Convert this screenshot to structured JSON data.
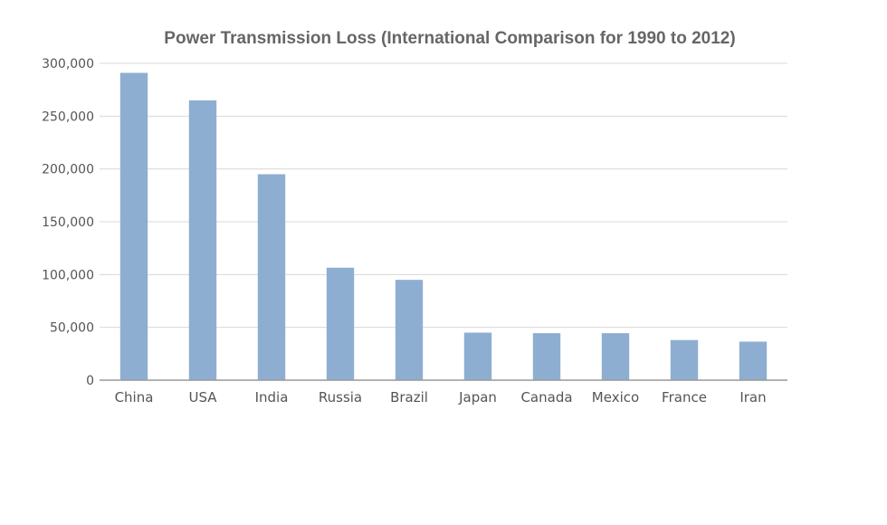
{
  "chart_data": {
    "type": "bar",
    "title": "Power Transmission Loss (International Comparison for 1990 to 2012)",
    "xlabel": "",
    "ylabel": "",
    "categories": [
      "China",
      "USA",
      "India",
      "Russia",
      "Brazil",
      "Japan",
      "Canada",
      "Mexico",
      "France",
      "Iran"
    ],
    "values": [
      291000,
      265000,
      195000,
      106500,
      95000,
      45000,
      44500,
      44500,
      38000,
      36500
    ],
    "ylim": [
      0,
      300000
    ],
    "yticks": [
      0,
      50000,
      100000,
      150000,
      200000,
      250000,
      300000
    ],
    "ytick_labels": [
      "0",
      "50,000",
      "100,000",
      "150,000",
      "200,000",
      "250,000",
      "300,000"
    ],
    "grid": true,
    "legend": "none",
    "colors": {
      "bar": "#8eaed1",
      "grid": "#d8d8d8",
      "axis": "#999999",
      "text": "#555555",
      "title": "#666666"
    }
  }
}
